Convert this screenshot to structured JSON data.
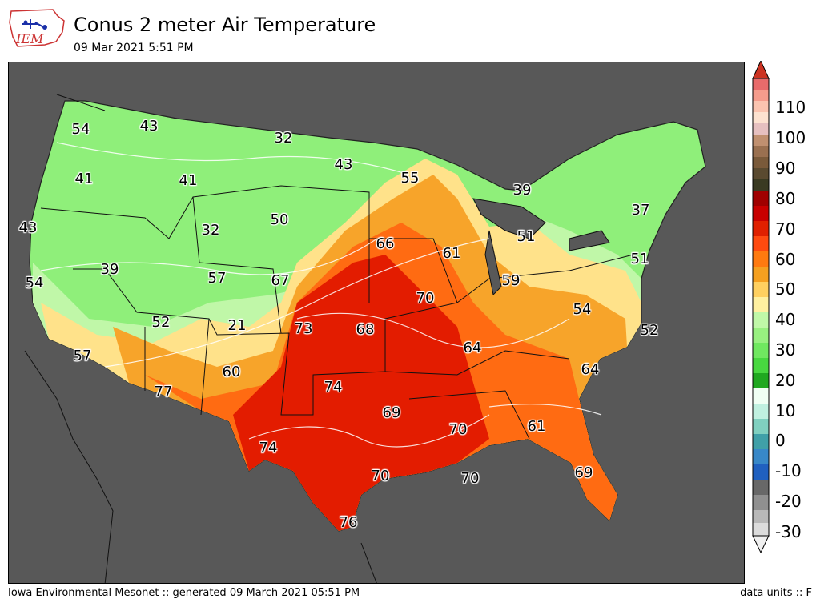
{
  "header": {
    "title": "Conus 2 meter Air Temperature",
    "subtitle": "09 Mar 2021 5:51 PM",
    "logo_text": "IEM"
  },
  "footer": {
    "left": "Iowa Environmental Mesonet :: generated 09 March 2021 05:51 PM",
    "right": "data units :: F"
  },
  "colors": {
    "ocean": "#585858",
    "cold_green": "#7bf46a",
    "mild_green": "#b9f7a6",
    "yellow": "#ffe080",
    "orange": "#f5a020",
    "dark_orange": "#ff6a10",
    "red": "#e01a00"
  },
  "colorbar": {
    "ticks": [
      "110",
      "100",
      "90",
      "80",
      "70",
      "60",
      "50",
      "40",
      "30",
      "20",
      "10",
      "0",
      "-10",
      "-20",
      "-30"
    ]
  },
  "station_values": [
    {
      "id": "wa-west",
      "value": "54"
    },
    {
      "id": "id-north",
      "value": "43"
    },
    {
      "id": "mt-north",
      "value": "32"
    },
    {
      "id": "nd-east",
      "value": "43"
    },
    {
      "id": "or-west",
      "value": "41"
    },
    {
      "id": "mt-south",
      "value": "41"
    },
    {
      "id": "mn-north",
      "value": "55"
    },
    {
      "id": "wi-north",
      "value": "39"
    },
    {
      "id": "ca-north",
      "value": "43"
    },
    {
      "id": "wy-center",
      "value": "32"
    },
    {
      "id": "sd-west",
      "value": "50"
    },
    {
      "id": "ne-east",
      "value": "66"
    },
    {
      "id": "ia-east",
      "value": "61"
    },
    {
      "id": "mi-south",
      "value": "51"
    },
    {
      "id": "ny-north",
      "value": "37"
    },
    {
      "id": "nv-north",
      "value": "39"
    },
    {
      "id": "ut-east",
      "value": "57"
    },
    {
      "id": "co-ne",
      "value": "67"
    },
    {
      "id": "mo-north",
      "value": "70"
    },
    {
      "id": "oh-west",
      "value": "59"
    },
    {
      "id": "ct",
      "value": "51"
    },
    {
      "id": "ca-bay",
      "value": "54"
    },
    {
      "id": "nv-south",
      "value": "52"
    },
    {
      "id": "co-south",
      "value": "21"
    },
    {
      "id": "ks-west",
      "value": "73"
    },
    {
      "id": "ks-center",
      "value": "68"
    },
    {
      "id": "wv",
      "value": "54"
    },
    {
      "id": "va-east",
      "value": "52"
    },
    {
      "id": "ca-south",
      "value": "57"
    },
    {
      "id": "tn-west",
      "value": "64"
    },
    {
      "id": "nm-north",
      "value": "60"
    },
    {
      "id": "nc",
      "value": "64"
    },
    {
      "id": "az-south",
      "value": "77"
    },
    {
      "id": "ok-west",
      "value": "74"
    },
    {
      "id": "tx-ne",
      "value": "69"
    },
    {
      "id": "ms",
      "value": "70"
    },
    {
      "id": "ga",
      "value": "61"
    },
    {
      "id": "tx-west",
      "value": "74"
    },
    {
      "id": "tx-gulf",
      "value": "70"
    },
    {
      "id": "la",
      "value": "70"
    },
    {
      "id": "fl",
      "value": "69"
    },
    {
      "id": "tx-south",
      "value": "76"
    }
  ]
}
